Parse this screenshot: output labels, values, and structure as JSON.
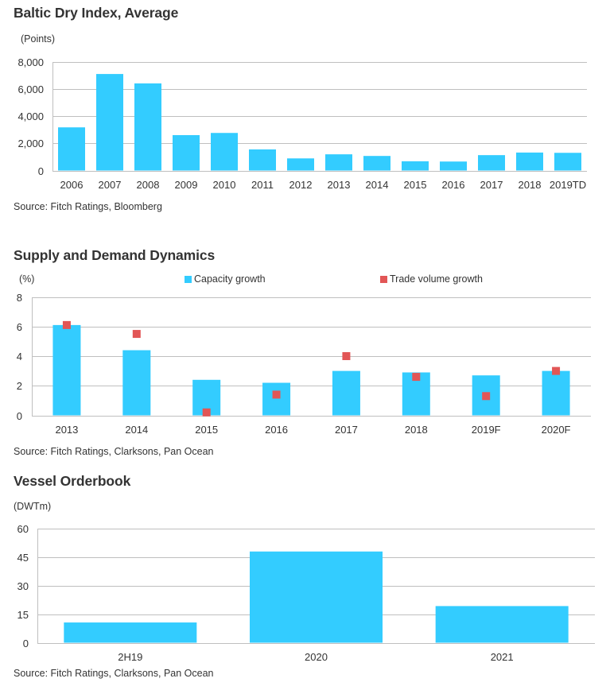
{
  "colors": {
    "bar": "#33CCFF",
    "marker": "#E25656",
    "grid": "#BFBFBF",
    "text": "#333333"
  },
  "chart_data": [
    {
      "type": "bar",
      "title": "Baltic Dry Index, Average",
      "ylabel": "(Points)",
      "xlabel": "",
      "categories": [
        "2006",
        "2007",
        "2008",
        "2009",
        "2010",
        "2011",
        "2012",
        "2013",
        "2014",
        "2015",
        "2016",
        "2017",
        "2018",
        "2019TD"
      ],
      "values": [
        3170,
        7090,
        6400,
        2600,
        2760,
        1550,
        890,
        1190,
        1070,
        680,
        660,
        1130,
        1320,
        1300
      ],
      "ylim": [
        0,
        8000
      ],
      "yticks": [
        0,
        2000,
        4000,
        6000,
        8000
      ],
      "ytick_labels": [
        "0",
        "2,000",
        "4,000",
        "6,000",
        "8,000"
      ],
      "grid": true,
      "legend": null,
      "source": "Source: Fitch Ratings, Bloomberg"
    },
    {
      "type": "bar",
      "title": "Supply and Demand Dynamics",
      "ylabel": "(%)",
      "xlabel": "",
      "categories": [
        "2013",
        "2014",
        "2015",
        "2016",
        "2017",
        "2018",
        "2019F",
        "2020F"
      ],
      "series": [
        {
          "name": "Capacity growth",
          "kind": "bar",
          "values": [
            6.1,
            4.4,
            2.4,
            2.2,
            3.0,
            2.9,
            2.7,
            3.0
          ]
        },
        {
          "name": "Trade volume growth",
          "kind": "marker",
          "values": [
            6.1,
            5.5,
            0.2,
            1.4,
            4.0,
            2.6,
            1.3,
            3.0
          ]
        }
      ],
      "ylim": [
        0,
        8
      ],
      "yticks": [
        0,
        2,
        4,
        6,
        8
      ],
      "ytick_labels": [
        "0",
        "2",
        "4",
        "6",
        "8"
      ],
      "grid": true,
      "legend": "top",
      "source": "Source: Fitch Ratings, Clarksons, Pan Ocean"
    },
    {
      "type": "bar",
      "title": "Vessel Orderbook",
      "ylabel": "(DWTm)",
      "xlabel": "",
      "categories": [
        "2H19",
        "2020",
        "2021"
      ],
      "values": [
        10.6,
        47.8,
        19.2
      ],
      "ylim": [
        0,
        60
      ],
      "yticks": [
        0,
        15,
        30,
        45,
        60
      ],
      "ytick_labels": [
        "0",
        "15",
        "30",
        "45",
        "60"
      ],
      "grid": true,
      "legend": null,
      "source": "Source: Fitch Ratings, Clarksons, Pan Ocean"
    }
  ]
}
